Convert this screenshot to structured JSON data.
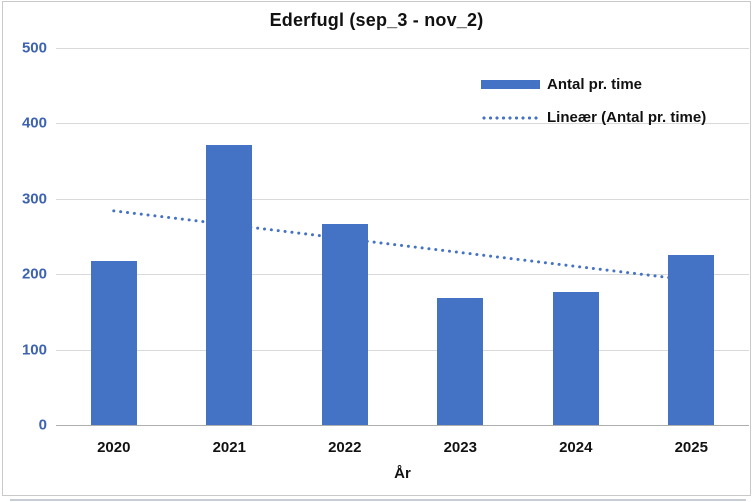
{
  "chart_data": {
    "type": "bar",
    "title": "Ederfugl (sep_3 - nov_2)",
    "xlabel": "År",
    "ylabel": "",
    "categories": [
      "2020",
      "2021",
      "2022",
      "2023",
      "2024",
      "2025"
    ],
    "series": [
      {
        "name": "Antal pr. time",
        "values": [
          217,
          372,
          267,
          168,
          176,
          226
        ],
        "color": "#4472C4"
      }
    ],
    "trendline": {
      "name": "Lineær (Antal pr. time)",
      "style": "dotted",
      "color": "#4472C4",
      "start_value": 284,
      "end_value": 192
    },
    "ylim": [
      0,
      500
    ],
    "yticks": [
      0,
      100,
      200,
      300,
      400,
      500
    ],
    "grid": true,
    "legend_position": "top-right",
    "colors": {
      "gridline": "#d9d9d9",
      "axis_line": "#aeaeae",
      "ytick_label": "#3d62b1",
      "xtick_label": "#121212",
      "title_text": "#111111",
      "legend_text": "#111111",
      "chart_border": "#c9c9c9"
    }
  }
}
